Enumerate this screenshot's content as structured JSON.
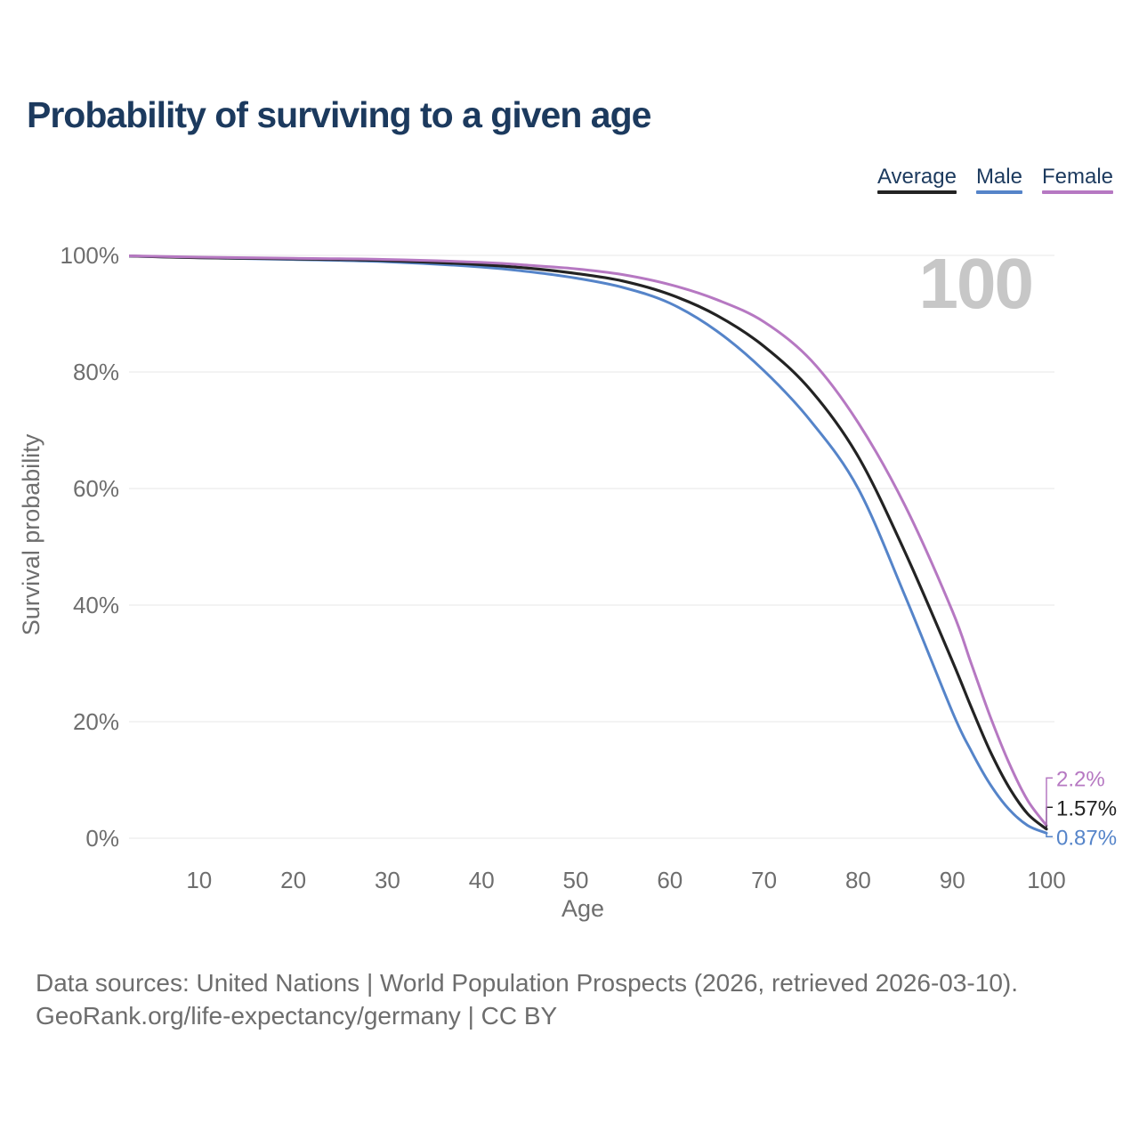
{
  "title": "Probability of surviving to a given age",
  "legend": [
    {
      "label": "Average",
      "color": "#232323"
    },
    {
      "label": "Male",
      "color": "#5584c9"
    },
    {
      "label": "Female",
      "color": "#b678c2"
    }
  ],
  "footer": {
    "line1": "Data sources: United Nations | World Population Prospects (2026, retrieved 2026-03-10).",
    "line2": "GeoRank.org/life-expectancy/germany | CC BY"
  },
  "chart_data": {
    "type": "line",
    "title": "Probability of surviving to a given age",
    "xlabel": "Age",
    "ylabel": "Survival probability",
    "xlim": [
      0,
      100
    ],
    "ylim": [
      0,
      100
    ],
    "x_ticks": [
      10,
      20,
      30,
      40,
      50,
      60,
      70,
      80,
      90,
      100
    ],
    "y_ticks": [
      0,
      20,
      40,
      60,
      80,
      100
    ],
    "y_tick_suffix": "%",
    "grid": "horizontal",
    "legend_position": "top-right",
    "annotation": "100",
    "x": [
      0,
      10,
      20,
      30,
      40,
      45,
      50,
      55,
      60,
      65,
      70,
      75,
      80,
      85,
      90,
      92,
      94,
      96,
      98,
      100
    ],
    "series": [
      {
        "name": "Average",
        "color": "#232323",
        "end_label": "1.57%",
        "values": [
          100,
          99.6,
          99.4,
          99.1,
          98.4,
          97.8,
          96.9,
          95.6,
          93.3,
          89.7,
          84.4,
          76.8,
          65.5,
          49.0,
          30.4,
          22.5,
          15.0,
          8.8,
          4.2,
          1.57
        ]
      },
      {
        "name": "Male",
        "color": "#5584c9",
        "end_label": "0.87%",
        "values": [
          100,
          99.6,
          99.3,
          98.9,
          98.0,
          97.2,
          96.1,
          94.5,
          91.8,
          87.0,
          80.2,
          71.5,
          60.0,
          41.5,
          21.7,
          15.0,
          9.3,
          5.0,
          2.2,
          0.87
        ]
      },
      {
        "name": "Female",
        "color": "#b678c2",
        "end_label": "2.2%",
        "values": [
          100,
          99.7,
          99.5,
          99.3,
          98.8,
          98.3,
          97.7,
          96.7,
          95.0,
          92.4,
          88.6,
          82.0,
          71.3,
          57.0,
          39.0,
          30.0,
          21.0,
          13.0,
          6.5,
          2.2
        ]
      }
    ]
  }
}
